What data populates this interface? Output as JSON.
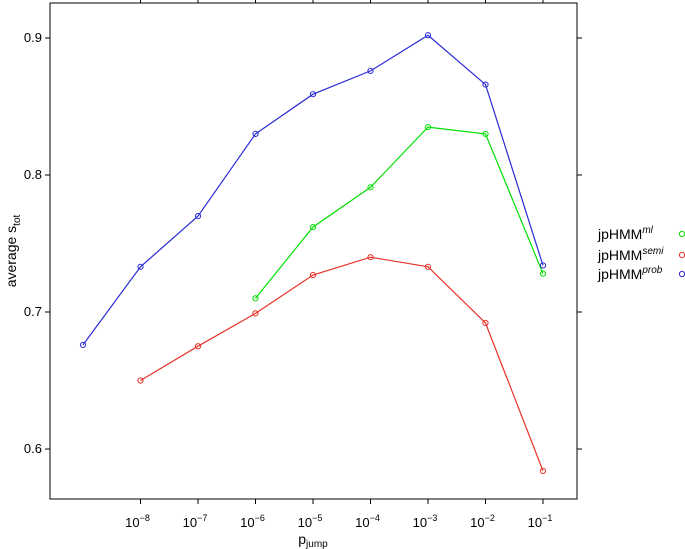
{
  "chart_data": {
    "type": "line",
    "xlabel": "p",
    "xlabel_sub": "jump",
    "ylabel": "average s",
    "ylabel_sub": "tot",
    "x_scale": "log10",
    "xlim": [
      1e-09,
      0.1
    ],
    "ylim": [
      0.6,
      0.9
    ],
    "x_ticks": [
      1e-08,
      1e-07,
      1e-06,
      1e-05,
      0.0001,
      0.001,
      0.01,
      0.1
    ],
    "x_tick_exponents": [
      "−8",
      "−7",
      "−6",
      "−5",
      "−4",
      "−3",
      "−2",
      "−1"
    ],
    "x_tick_base": "10",
    "y_ticks": [
      "0.6",
      "0.7",
      "0.8",
      "0.9"
    ],
    "grid": false,
    "legend_position": "right",
    "series": [
      {
        "name_base": "jpHMM",
        "name_sup": "ml",
        "color": "#00e000",
        "x": [
          1e-06,
          1e-05,
          0.0001,
          0.001,
          0.01,
          0.1
        ],
        "y": [
          0.71,
          0.762,
          0.791,
          0.835,
          0.83,
          0.728
        ]
      },
      {
        "name_base": "jpHMM",
        "name_sup": "semi",
        "color": "#e8332a",
        "x": [
          1e-08,
          1e-07,
          1e-06,
          1e-05,
          0.0001,
          0.001,
          0.01,
          0.1
        ],
        "y": [
          0.65,
          0.675,
          0.699,
          0.727,
          0.74,
          0.733,
          0.692,
          0.584
        ]
      },
      {
        "name_base": "jpHMM",
        "name_sup": "prob",
        "color": "#2a2ad6",
        "x": [
          1e-09,
          1e-08,
          1e-07,
          1e-06,
          1e-05,
          0.0001,
          0.001,
          0.01,
          0.1
        ],
        "y": [
          0.676,
          0.733,
          0.77,
          0.83,
          0.859,
          0.876,
          0.902,
          0.866,
          0.734
        ]
      }
    ]
  }
}
